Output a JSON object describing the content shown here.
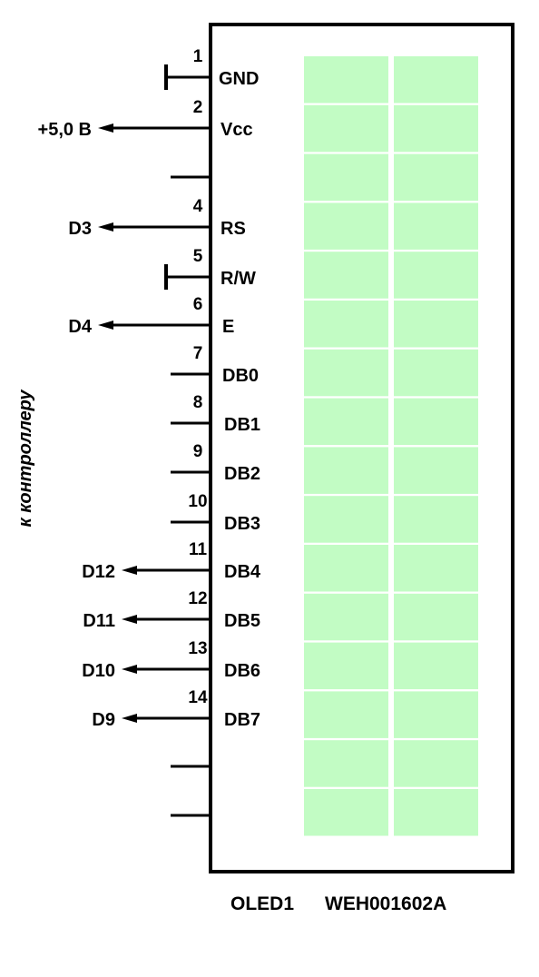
{
  "side_label": "к контроллеру",
  "caption": {
    "ref": "OLED1",
    "part": "WEH001602A"
  },
  "screen_color": "#c2fcc4",
  "screen": {
    "columns": 2,
    "rows": 16
  },
  "pins": [
    {
      "num": "1",
      "name": "GND",
      "conn": "ground",
      "target": ""
    },
    {
      "num": "2",
      "name": "Vcc",
      "conn": "arrow",
      "target": "+5,0 В"
    },
    {
      "num": "",
      "name": "",
      "conn": "line",
      "target": ""
    },
    {
      "num": "4",
      "name": "RS",
      "conn": "arrow",
      "target": "D3"
    },
    {
      "num": "5",
      "name": "R/W",
      "conn": "ground",
      "target": ""
    },
    {
      "num": "6",
      "name": "E",
      "conn": "arrow",
      "target": "D4"
    },
    {
      "num": "7",
      "name": "DB0",
      "conn": "line",
      "target": ""
    },
    {
      "num": "8",
      "name": "DB1",
      "conn": "line",
      "target": ""
    },
    {
      "num": "9",
      "name": "DB2",
      "conn": "line",
      "target": ""
    },
    {
      "num": "10",
      "name": "DB3",
      "conn": "line",
      "target": ""
    },
    {
      "num": "11",
      "name": "DB4",
      "conn": "arrow",
      "target": "D12"
    },
    {
      "num": "12",
      "name": "DB5",
      "conn": "arrow",
      "target": "D11"
    },
    {
      "num": "13",
      "name": "DB6",
      "conn": "arrow",
      "target": "D10"
    },
    {
      "num": "14",
      "name": "DB7",
      "conn": "arrow",
      "target": "D9"
    },
    {
      "num": "",
      "name": "",
      "conn": "line",
      "target": ""
    },
    {
      "num": "",
      "name": "",
      "conn": "line",
      "target": ""
    }
  ]
}
